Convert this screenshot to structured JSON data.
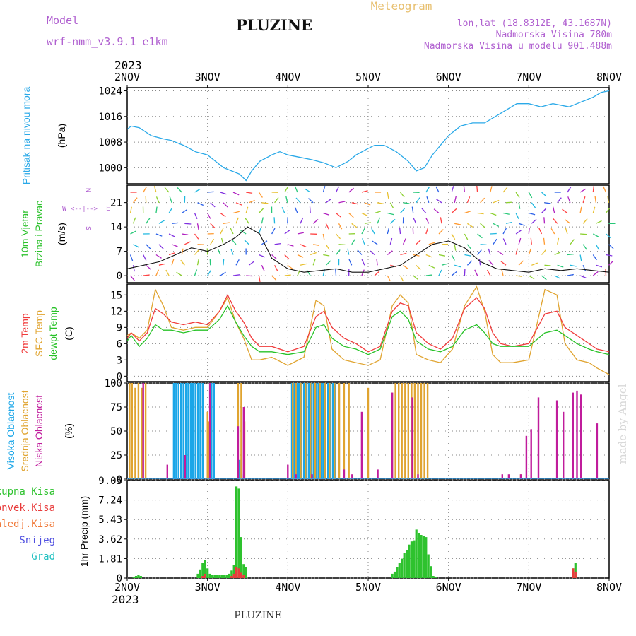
{
  "header": {
    "title": "PLUZINE",
    "model_label": "Model",
    "model_name": "wrf-nmm_v3.9.1  e1km",
    "product": "Meteogram",
    "location": "lon,lat (18.8312E, 43.1687N)",
    "altitude": "Nadmorska Visina 780m",
    "model_altitude": "Nadmorska Visina u modelu 901.488m",
    "footer": "PLUZINE",
    "watermark": "made by Angel"
  },
  "colors": {
    "pressure": "#2aa9e8",
    "temp2m": "#f03c3c",
    "sfc": "#e0a430",
    "dew": "#27c227",
    "cloud_high": "#1aa6e8",
    "cloud_mid": "#e0a430",
    "cloud_low": "#c01c9c",
    "rain": "#2ec22e",
    "conv": "#e83c3c",
    "snow": "#5050e0",
    "grad": "#20c0c0",
    "header_purple": "#b060d0",
    "header_orange": "#e8c070",
    "wind_label": "#2ec22e"
  },
  "chart_data": {
    "x_axis": {
      "year": "2023",
      "ticks": [
        "2NOV",
        "3NOV",
        "4NOV",
        "5NOV",
        "6NOV",
        "7NOV",
        "8NOV"
      ],
      "range_days": [
        0,
        6
      ]
    },
    "panels": [
      {
        "id": "pressure",
        "type": "line",
        "ylabel": [
          "Pritisak na nivou mora"
        ],
        "unit": "(hPa)",
        "yticks": [
          "1024",
          "1016",
          "1008",
          "1000"
        ],
        "ylim": [
          995,
          1025
        ],
        "series": [
          {
            "x": [
              0,
              0.05,
              0.15,
              0.3,
              0.45,
              0.55,
              0.7,
              0.85,
              1.0,
              1.1,
              1.2,
              1.3,
              1.4,
              1.48,
              1.55,
              1.65,
              1.8,
              1.9,
              2.0,
              2.2,
              2.3,
              2.45,
              2.6,
              2.75,
              2.85,
              3.0,
              3.08,
              3.2,
              3.35,
              3.5,
              3.6,
              3.7,
              3.8,
              3.9,
              4.0,
              4.15,
              4.3,
              4.45,
              4.65,
              4.85,
              5.0,
              5.15,
              5.3,
              5.5,
              5.6,
              5.7,
              5.8,
              5.9,
              6.0
            ],
            "y": [
              1012,
              1013,
              1012.5,
              1010,
              1009,
              1008.5,
              1007,
              1005,
              1004,
              1002,
              1000,
              999,
              998,
              996,
              999,
              1002,
              1004,
              1005,
              1004,
              1003,
              1002.5,
              1001.5,
              1000,
              1002,
              1004,
              1006,
              1007,
              1007,
              1005,
              1002,
              999,
              1000,
              1004,
              1007,
              1010,
              1013,
              1014,
              1014,
              1017,
              1020,
              1020,
              1019,
              1020,
              1019,
              1020,
              1021,
              1022,
              1023.5,
              1024
            ]
          }
        ]
      },
      {
        "id": "wind",
        "type": "line",
        "ylabel": [
          "10m Vjetar",
          "Brzina i Pravac"
        ],
        "unit": "(m/s)",
        "yticks": [
          "21",
          "14",
          "7",
          "0"
        ],
        "ylim": [
          -2,
          26
        ],
        "compass": {
          "n": "N",
          "s": "S",
          "e": "E",
          "w": "W"
        },
        "series": [
          {
            "name": "speed",
            "x": [
              0,
              0.2,
              0.4,
              0.6,
              0.8,
              1.0,
              1.2,
              1.35,
              1.5,
              1.65,
              1.8,
              2.0,
              2.2,
              2.4,
              2.6,
              2.8,
              3.0,
              3.2,
              3.4,
              3.6,
              3.8,
              4.0,
              4.2,
              4.4,
              4.6,
              4.8,
              5.0,
              5.2,
              5.4,
              5.6,
              5.8,
              6.0
            ],
            "y": [
              2,
              3,
              4,
              6,
              8,
              7,
              9,
              11,
              14,
              12,
              5,
              2,
              1,
              1.5,
              2,
              1,
              1,
              2,
              3,
              6,
              9,
              10,
              8,
              4,
              2,
              1.5,
              1,
              2,
              1.5,
              2,
              1.5,
              1
            ]
          }
        ]
      },
      {
        "id": "temperature",
        "type": "line",
        "ylabel": [
          "2m Temp",
          "SFC Temp",
          "dewpt Temp"
        ],
        "unit": "(C)",
        "yticks": [
          "15",
          "12",
          "9",
          "6",
          "3",
          "0"
        ],
        "ylim": [
          -1,
          17
        ],
        "series": [
          {
            "name": "2m Temp",
            "x": [
              0,
              0.05,
              0.15,
              0.25,
              0.35,
              0.45,
              0.55,
              0.7,
              0.85,
              1.0,
              1.15,
              1.25,
              1.35,
              1.45,
              1.55,
              1.65,
              1.8,
              2.0,
              2.2,
              2.35,
              2.45,
              2.55,
              2.7,
              2.85,
              3.0,
              3.15,
              3.3,
              3.4,
              3.5,
              3.6,
              3.75,
              3.9,
              4.05,
              4.2,
              4.35,
              4.45,
              4.55,
              4.65,
              4.8,
              5.0,
              5.2,
              5.35,
              5.45,
              5.6,
              5.75,
              5.85,
              6.0
            ],
            "y": [
              7,
              8,
              6.5,
              8,
              12.5,
              11.5,
              10,
              9.5,
              10,
              9.5,
              12,
              15,
              12,
              10,
              7,
              5.5,
              5.5,
              4.5,
              5.5,
              11,
              12,
              9,
              7,
              6,
              4.5,
              5.5,
              12,
              13.5,
              13,
              8,
              6,
              5,
              7,
              12.5,
              14.5,
              12.5,
              8,
              6,
              5.5,
              6,
              11.5,
              12,
              9,
              7.5,
              6,
              5,
              4.5
            ]
          },
          {
            "name": "SFC Temp",
            "x": [
              0,
              0.05,
              0.15,
              0.25,
              0.35,
              0.45,
              0.55,
              0.7,
              0.85,
              1.0,
              1.15,
              1.25,
              1.35,
              1.45,
              1.55,
              1.65,
              1.8,
              2.0,
              2.2,
              2.35,
              2.45,
              2.55,
              2.7,
              2.85,
              3.0,
              3.15,
              3.3,
              3.4,
              3.5,
              3.6,
              3.75,
              3.9,
              4.05,
              4.2,
              4.35,
              4.45,
              4.55,
              4.65,
              4.8,
              5.0,
              5.2,
              5.35,
              5.45,
              5.6,
              5.75,
              5.85,
              6.0
            ],
            "y": [
              7.5,
              8,
              7,
              8.5,
              16,
              13,
              9,
              8.5,
              9,
              9,
              12,
              14.5,
              10,
              7,
              3,
              3,
              3.5,
              2,
              3.5,
              14,
              13,
              5,
              3,
              2.5,
              2,
              3,
              13,
              15,
              13.5,
              4,
              3,
              2.5,
              5,
              13,
              16.5,
              12,
              4,
              2.5,
              2.5,
              3,
              16,
              15,
              6,
              3,
              2.5,
              1.5,
              0.3
            ]
          },
          {
            "name": "dewpt Temp",
            "x": [
              0,
              0.05,
              0.15,
              0.25,
              0.35,
              0.45,
              0.55,
              0.7,
              0.85,
              1.0,
              1.15,
              1.25,
              1.35,
              1.45,
              1.55,
              1.65,
              1.8,
              2.0,
              2.2,
              2.35,
              2.45,
              2.55,
              2.7,
              2.85,
              3.0,
              3.15,
              3.3,
              3.4,
              3.5,
              3.6,
              3.75,
              3.9,
              4.05,
              4.2,
              4.35,
              4.45,
              4.55,
              4.65,
              4.8,
              5.0,
              5.2,
              5.35,
              5.45,
              5.6,
              5.75,
              5.85,
              6.0
            ],
            "y": [
              6.5,
              7.5,
              5.5,
              7,
              9.5,
              8.5,
              8.5,
              8,
              8.5,
              8.5,
              10.5,
              13,
              10,
              7.5,
              5.5,
              4.5,
              4.5,
              4,
              4.5,
              9,
              9.5,
              7,
              5.5,
              5,
              4,
              5,
              11,
              12,
              10.5,
              6.5,
              5,
              4.5,
              5.5,
              8.5,
              9.5,
              8,
              6,
              5.5,
              5.5,
              5.5,
              8,
              8.5,
              7.5,
              6,
              5,
              4.5,
              4
            ]
          }
        ]
      },
      {
        "id": "clouds",
        "type": "bar",
        "ylabel": [
          "Visoka Oblacnost",
          "Srednja Oblacnost",
          "Niska Oblacnost"
        ],
        "unit": "(%)",
        "yticks": [
          "100",
          "75",
          "50",
          "25",
          "0"
        ],
        "ylim": [
          0,
          100
        ],
        "series": [
          {
            "name": "Visoka Oblacnost",
            "x": [
              0.58,
              0.61,
              0.64,
              0.67,
              0.7,
              0.73,
              0.76,
              0.79,
              0.82,
              0.85,
              0.88,
              0.91,
              0.94,
              1.05,
              1.08,
              1.4,
              1.45,
              2.05,
              2.08,
              2.11,
              2.14,
              2.17,
              2.2,
              2.23,
              2.26,
              2.29,
              2.32,
              2.35,
              2.38,
              2.41,
              2.44,
              2.47,
              2.5,
              2.53,
              2.56,
              2.59
            ],
            "values": [
              100,
              100,
              100,
              100,
              100,
              100,
              100,
              100,
              100,
              100,
              100,
              100,
              100,
              100,
              100,
              20,
              5,
              100,
              100,
              100,
              100,
              100,
              100,
              100,
              100,
              100,
              100,
              100,
              100,
              100,
              100,
              100,
              100,
              100,
              100,
              100
            ]
          },
          {
            "name": "Srednja Oblacnost",
            "x": [
              0.03,
              0.06,
              0.1,
              0.14,
              0.18,
              0.23,
              1.0,
              1.02,
              1.38,
              1.42,
              1.46,
              2.06,
              2.1,
              2.16,
              2.22,
              2.28,
              2.34,
              2.4,
              2.46,
              2.52,
              2.58,
              2.64,
              2.7,
              2.76,
              3.0,
              3.3,
              3.34,
              3.38,
              3.42,
              3.46,
              3.5,
              3.54,
              3.58,
              3.62,
              3.66,
              3.7,
              3.74,
              4.9
            ],
            "values": [
              100,
              100,
              95,
              100,
              95,
              100,
              70,
              60,
              100,
              100,
              60,
              100,
              100,
              100,
              100,
              100,
              100,
              100,
              100,
              100,
              100,
              100,
              100,
              100,
              95,
              90,
              100,
              100,
              100,
              100,
              100,
              100,
              100,
              100,
              100,
              100,
              100,
              5
            ]
          },
          {
            "name": "Niska Oblacnost",
            "x": [
              0.2,
              0.5,
              0.72,
              1.03,
              1.38,
              1.45,
              2.0,
              2.1,
              2.3,
              2.7,
              2.8,
              2.92,
              3.12,
              3.3,
              3.55,
              3.62,
              4.67,
              4.75,
              4.9,
              4.97,
              5.03,
              5.12,
              5.35,
              5.43,
              5.55,
              5.6,
              5.65,
              5.85
            ],
            "values": [
              100,
              15,
              25,
              100,
              55,
              75,
              15,
              5,
              5,
              10,
              5,
              70,
              10,
              90,
              85,
              5,
              5,
              5,
              5,
              45,
              52,
              85,
              82,
              70,
              90,
              92,
              88,
              58
            ]
          }
        ]
      },
      {
        "id": "precip",
        "type": "bar",
        "ylabel": [
          "1hr Precip (mm)"
        ],
        "unit": "",
        "yticks": [
          "9.05",
          "7.24",
          "5.43",
          "3.62",
          "1.81",
          "0"
        ],
        "ylim": [
          0,
          9.05
        ],
        "legend": [
          "Ukupna Kisa",
          "Konvek.Kisa",
          "Zaledj.Kisa",
          "Snijeg",
          "Grad"
        ],
        "series": [
          {
            "name": "Ukupna Kisa",
            "x": [
              0.08,
              0.11,
              0.14,
              0.17,
              0.88,
              0.91,
              0.94,
              0.97,
              1.0,
              1.03,
              1.06,
              1.09,
              1.12,
              1.15,
              1.18,
              1.21,
              1.24,
              1.27,
              1.3,
              1.33,
              1.36,
              1.39,
              1.42,
              1.45,
              1.48,
              3.3,
              3.33,
              3.36,
              3.39,
              3.42,
              3.45,
              3.48,
              3.51,
              3.54,
              3.57,
              3.6,
              3.63,
              3.66,
              3.69,
              3.72,
              3.75,
              3.78,
              3.81,
              3.84,
              5.55,
              5.58
            ],
            "values": [
              0.1,
              0.2,
              0.3,
              0.2,
              0.4,
              0.8,
              1.4,
              1.7,
              0.9,
              0.4,
              0.3,
              0.3,
              0.3,
              0.3,
              0.3,
              0.3,
              0.3,
              0.4,
              0.7,
              1.2,
              8.5,
              8.3,
              3.8,
              1.3,
              1.0,
              0.4,
              0.6,
              1.0,
              1.4,
              1.8,
              2.3,
              2.6,
              3.1,
              3.4,
              3.5,
              4.5,
              4.2,
              4.0,
              3.9,
              3.8,
              2.2,
              1.1,
              0.2,
              0.1,
              0.9,
              1.4
            ]
          },
          {
            "name": "Konvek.Kisa",
            "x": [
              0.94,
              0.97,
              1.3,
              1.33,
              1.36,
              1.39,
              1.42,
              1.45,
              5.55,
              5.58
            ],
            "values": [
              0.2,
              0.4,
              0.2,
              0.4,
              1.0,
              0.9,
              0.5,
              0.3,
              0.9,
              0.6
            ]
          }
        ]
      }
    ]
  }
}
